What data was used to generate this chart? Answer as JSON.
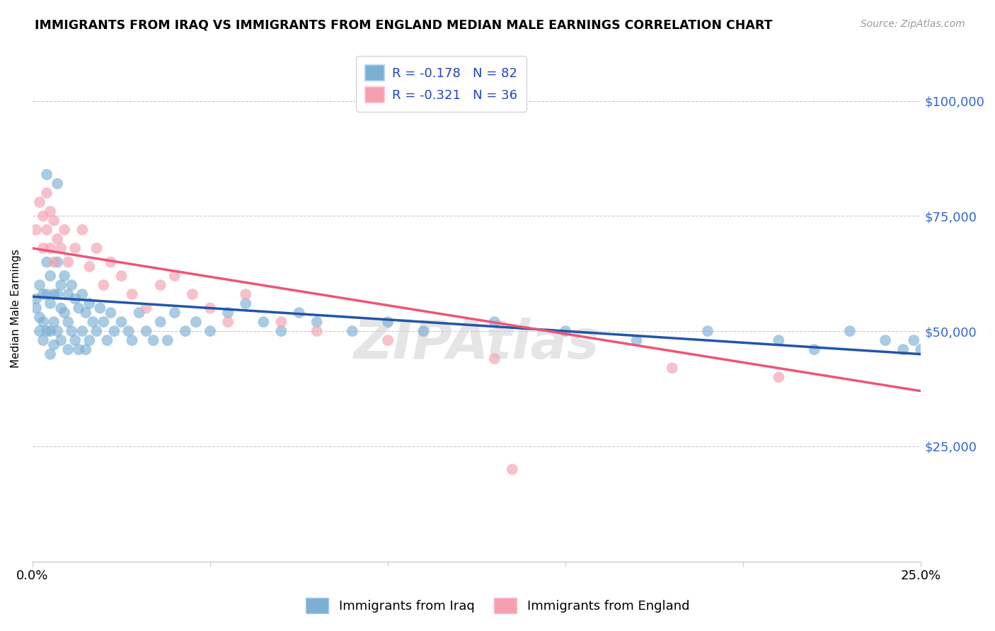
{
  "title": "IMMIGRANTS FROM IRAQ VS IMMIGRANTS FROM ENGLAND MEDIAN MALE EARNINGS CORRELATION CHART",
  "source": "Source: ZipAtlas.com",
  "ylabel": "Median Male Earnings",
  "xmin": 0.0,
  "xmax": 0.25,
  "ymin": 0,
  "ymax": 110000,
  "yticks": [
    0,
    25000,
    50000,
    75000,
    100000
  ],
  "xticks": [
    0.0,
    0.05,
    0.1,
    0.15,
    0.2,
    0.25
  ],
  "series1_label": "Immigrants from Iraq",
  "series2_label": "Immigrants from England",
  "R1": -0.178,
  "N1": 82,
  "R2": -0.321,
  "N2": 36,
  "color1": "#7BAFD4",
  "color2": "#F4A0B0",
  "line1_color": "#2255AA",
  "line2_color": "#EE5577",
  "watermark": "ZIPAtlas",
  "iraq_x": [
    0.001,
    0.001,
    0.002,
    0.002,
    0.002,
    0.003,
    0.003,
    0.003,
    0.004,
    0.004,
    0.004,
    0.005,
    0.005,
    0.005,
    0.005,
    0.006,
    0.006,
    0.006,
    0.007,
    0.007,
    0.007,
    0.008,
    0.008,
    0.008,
    0.009,
    0.009,
    0.01,
    0.01,
    0.01,
    0.011,
    0.011,
    0.012,
    0.012,
    0.013,
    0.013,
    0.014,
    0.014,
    0.015,
    0.015,
    0.016,
    0.016,
    0.017,
    0.018,
    0.019,
    0.02,
    0.021,
    0.022,
    0.023,
    0.025,
    0.027,
    0.028,
    0.03,
    0.032,
    0.034,
    0.036,
    0.038,
    0.04,
    0.043,
    0.046,
    0.05,
    0.055,
    0.06,
    0.065,
    0.07,
    0.075,
    0.08,
    0.09,
    0.1,
    0.11,
    0.13,
    0.15,
    0.17,
    0.19,
    0.21,
    0.22,
    0.23,
    0.24,
    0.245,
    0.248,
    0.25,
    0.004,
    0.007
  ],
  "iraq_y": [
    57000,
    55000,
    60000,
    53000,
    50000,
    58000,
    52000,
    48000,
    65000,
    58000,
    50000,
    62000,
    56000,
    50000,
    45000,
    58000,
    52000,
    47000,
    65000,
    58000,
    50000,
    60000,
    55000,
    48000,
    62000,
    54000,
    58000,
    52000,
    46000,
    60000,
    50000,
    57000,
    48000,
    55000,
    46000,
    58000,
    50000,
    54000,
    46000,
    56000,
    48000,
    52000,
    50000,
    55000,
    52000,
    48000,
    54000,
    50000,
    52000,
    50000,
    48000,
    54000,
    50000,
    48000,
    52000,
    48000,
    54000,
    50000,
    52000,
    50000,
    54000,
    56000,
    52000,
    50000,
    54000,
    52000,
    50000,
    52000,
    50000,
    52000,
    50000,
    48000,
    50000,
    48000,
    46000,
    50000,
    48000,
    46000,
    48000,
    46000,
    84000,
    82000
  ],
  "england_x": [
    0.001,
    0.002,
    0.003,
    0.003,
    0.004,
    0.004,
    0.005,
    0.005,
    0.006,
    0.006,
    0.007,
    0.008,
    0.009,
    0.01,
    0.012,
    0.014,
    0.016,
    0.018,
    0.02,
    0.022,
    0.025,
    0.028,
    0.032,
    0.036,
    0.04,
    0.045,
    0.05,
    0.055,
    0.06,
    0.07,
    0.08,
    0.1,
    0.13,
    0.18,
    0.21,
    0.135
  ],
  "england_y": [
    72000,
    78000,
    75000,
    68000,
    80000,
    72000,
    76000,
    68000,
    74000,
    65000,
    70000,
    68000,
    72000,
    65000,
    68000,
    72000,
    64000,
    68000,
    60000,
    65000,
    62000,
    58000,
    55000,
    60000,
    62000,
    58000,
    55000,
    52000,
    58000,
    52000,
    50000,
    48000,
    44000,
    42000,
    40000,
    20000
  ],
  "line1_x0": 0.0,
  "line1_y0": 57500,
  "line1_x1": 0.25,
  "line1_y1": 45000,
  "line2_x0": 0.0,
  "line2_y0": 68000,
  "line2_x1": 0.25,
  "line2_y1": 37000
}
